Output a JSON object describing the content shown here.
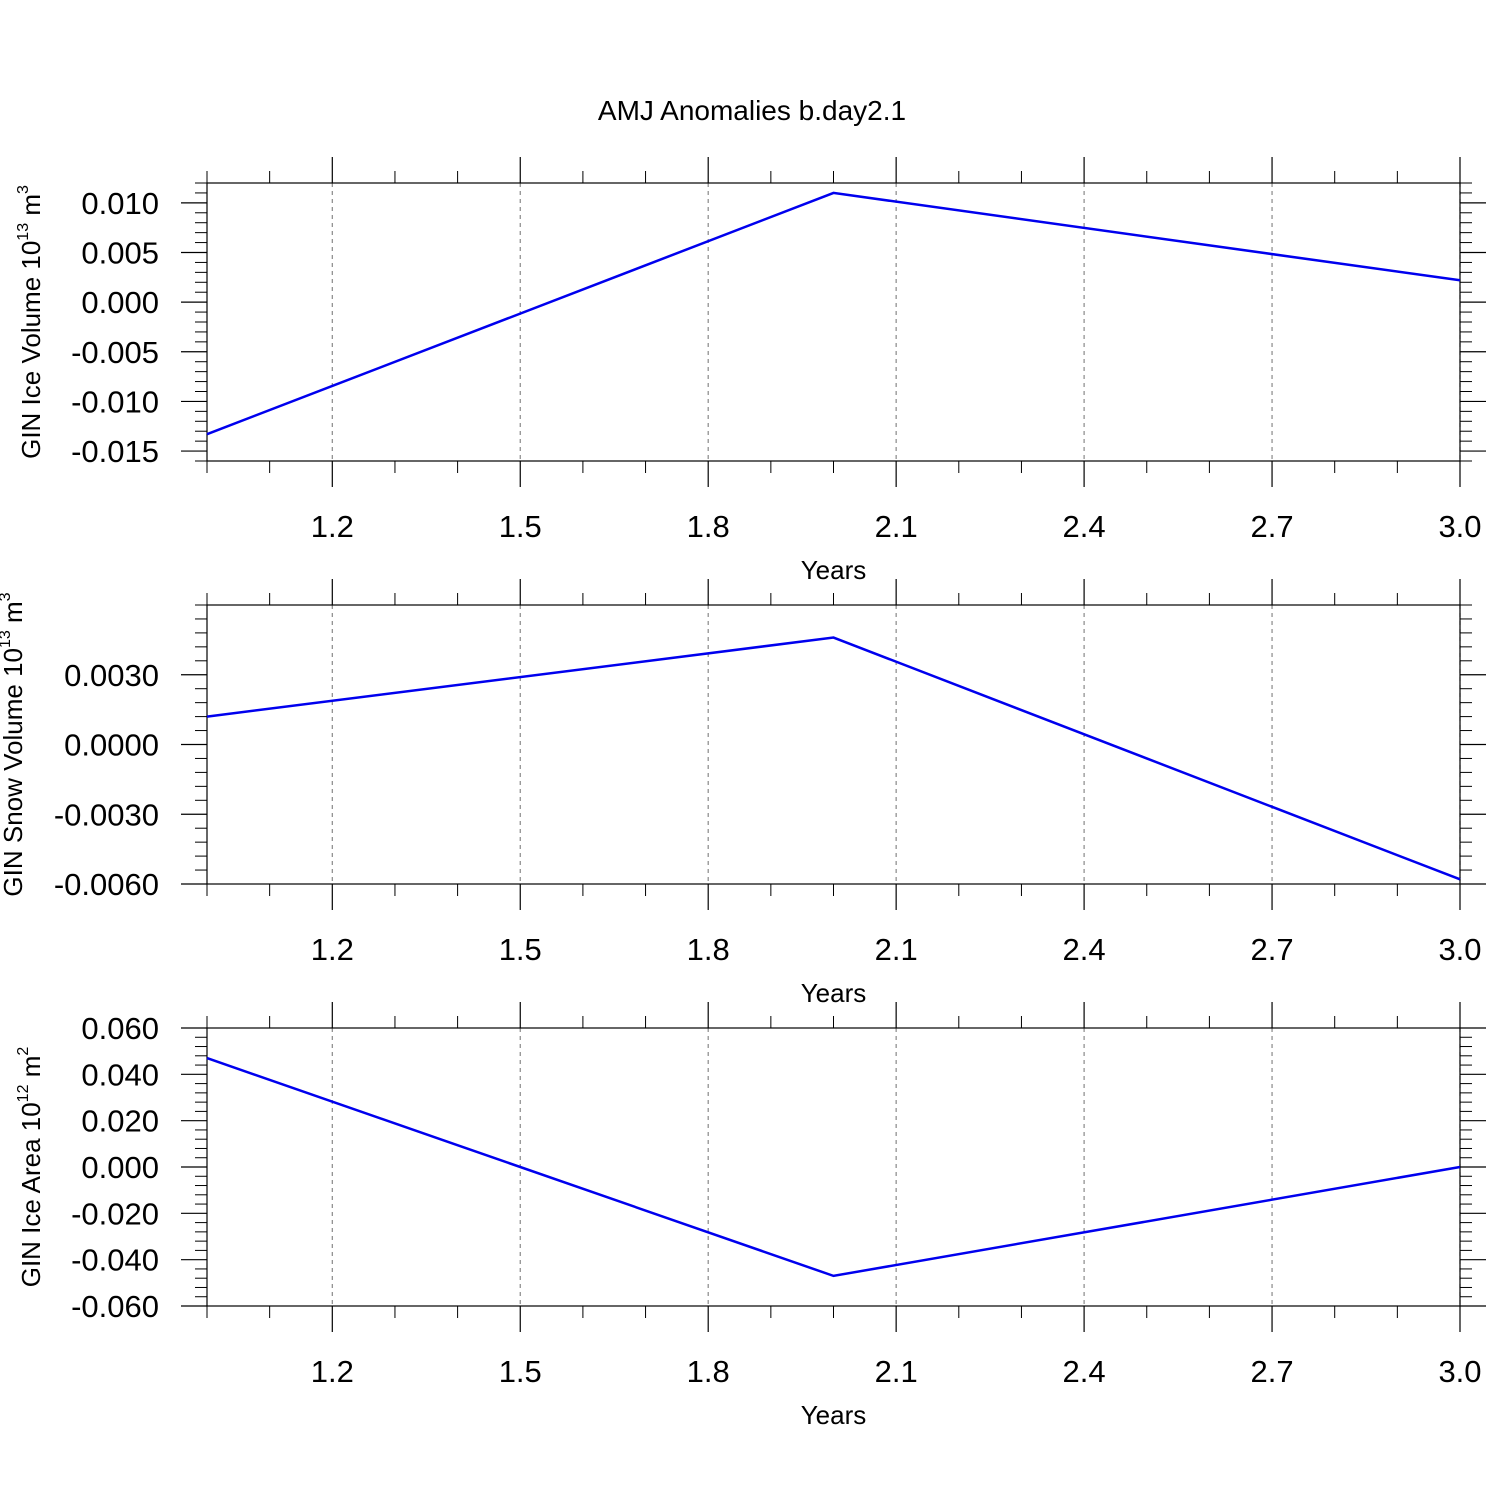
{
  "title": "AMJ Anomalies b.day2.1",
  "chart_data": [
    {
      "type": "line",
      "title": "AMJ Anomalies b.day2.1",
      "xlabel": "Years",
      "ylabel": {
        "text": "GIN Ice Volume 10",
        "sup1": "13",
        "unit": " m",
        "sup2": "3"
      },
      "x": [
        1,
        2,
        3
      ],
      "series": [
        {
          "values": [
            -0.0133,
            0.011,
            0.0022
          ]
        }
      ],
      "xlim": [
        1.0,
        3.0
      ],
      "ylim": [
        -0.016,
        0.012
      ],
      "xticks": [
        1.2,
        1.5,
        1.8,
        2.1,
        2.4,
        2.7,
        3.0
      ],
      "xtick_labels": [
        "1.2",
        "1.5",
        "1.8",
        "2.1",
        "2.4",
        "2.7",
        "3.0"
      ],
      "yticks": [
        0.01,
        0.005,
        0.0,
        -0.005,
        -0.01,
        -0.015
      ],
      "ytick_labels": [
        "0.010",
        "0.005",
        "0.000",
        "-0.005",
        "-0.010",
        "-0.015"
      ],
      "grid": "vertical dashed",
      "color": "#0000ee"
    },
    {
      "type": "line",
      "xlabel": "Years",
      "ylabel": {
        "text": "GIN Snow Volume 10",
        "sup1": "13",
        "unit": " m",
        "sup2": "3"
      },
      "x": [
        1,
        2,
        3
      ],
      "series": [
        {
          "values": [
            0.0012,
            0.0046,
            -0.0058
          ]
        }
      ],
      "xlim": [
        1.0,
        3.0
      ],
      "ylim": [
        -0.006,
        0.006
      ],
      "xticks": [
        1.2,
        1.5,
        1.8,
        2.1,
        2.4,
        2.7,
        3.0
      ],
      "xtick_labels": [
        "1.2",
        "1.5",
        "1.8",
        "2.1",
        "2.4",
        "2.7",
        "3.0"
      ],
      "yticks": [
        0.003,
        0.0,
        -0.003,
        -0.006
      ],
      "ytick_labels": [
        "0.0030",
        "0.0000",
        "-0.0030",
        "-0.0060"
      ],
      "grid": "vertical dashed",
      "color": "#0000ee"
    },
    {
      "type": "line",
      "xlabel": "Years",
      "ylabel": {
        "text": "GIN Ice Area 10",
        "sup1": "12",
        "unit": " m",
        "sup2": "2"
      },
      "x": [
        1,
        2,
        3
      ],
      "series": [
        {
          "values": [
            0.047,
            -0.047,
            0.0
          ]
        }
      ],
      "xlim": [
        1.0,
        3.0
      ],
      "ylim": [
        -0.06,
        0.06
      ],
      "xticks": [
        1.2,
        1.5,
        1.8,
        2.1,
        2.4,
        2.7,
        3.0
      ],
      "xtick_labels": [
        "1.2",
        "1.5",
        "1.8",
        "2.1",
        "2.4",
        "2.7",
        "3.0"
      ],
      "yticks": [
        0.06,
        0.04,
        0.02,
        0.0,
        -0.02,
        -0.04,
        -0.06
      ],
      "ytick_labels": [
        "0.060",
        "0.040",
        "0.020",
        "0.000",
        "-0.020",
        "-0.040",
        "-0.060"
      ],
      "grid": "vertical dashed",
      "color": "#0000ee"
    }
  ]
}
